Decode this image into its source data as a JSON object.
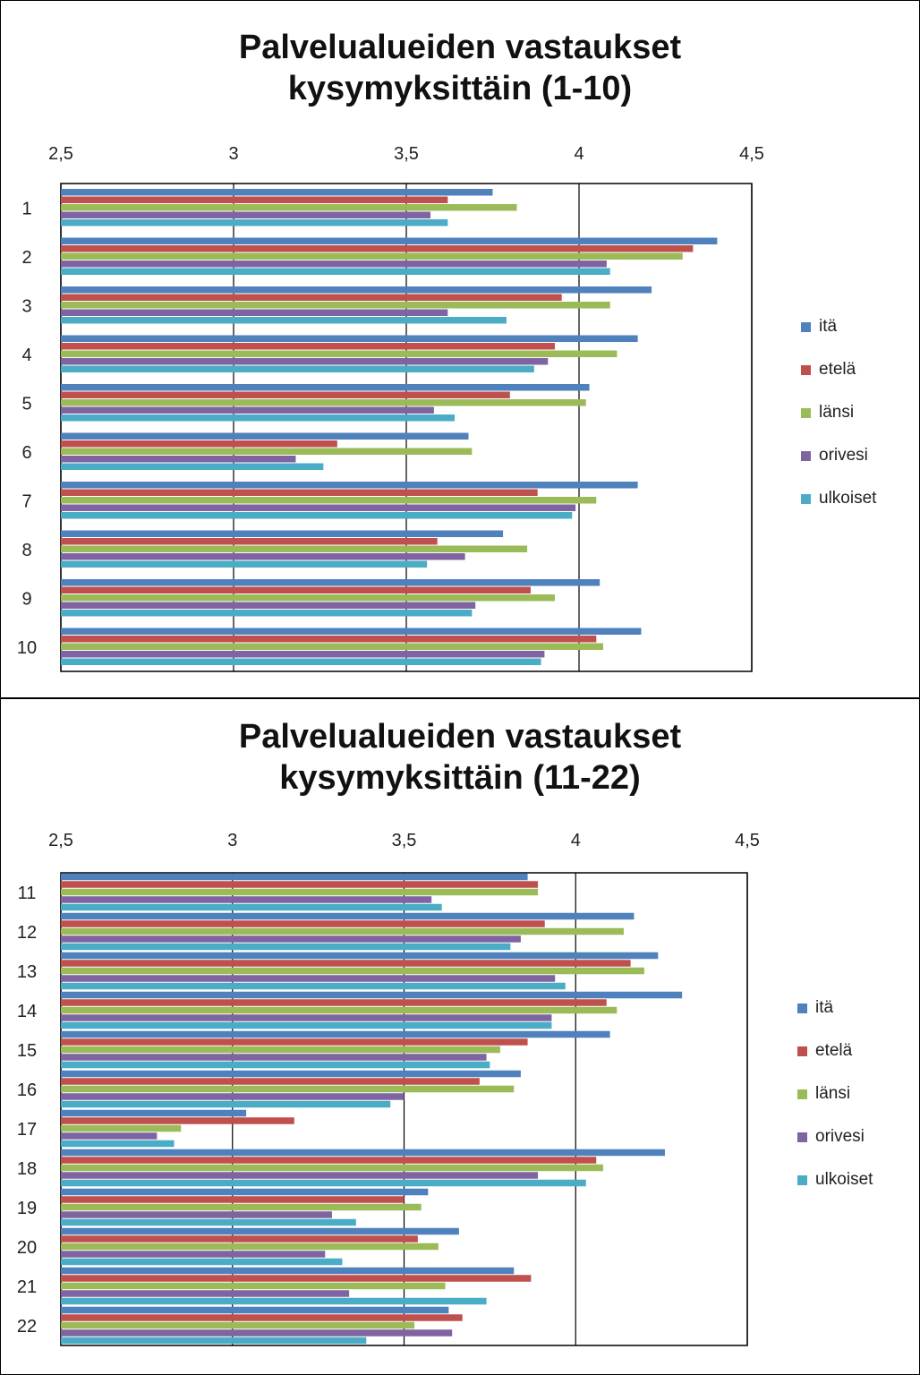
{
  "chart_data": [
    {
      "type": "bar",
      "orientation": "horizontal",
      "title": "Palvelualueiden vastaukset kysymyksittäin (1-10)",
      "title_lines": [
        "Palvelualueiden vastaukset",
        "kysymyksittäin (1-10)"
      ],
      "xlim": [
        2.5,
        4.5
      ],
      "x_ticks": [
        2.5,
        3,
        3.5,
        4,
        4.5
      ],
      "x_tick_labels": [
        "2,5",
        "3",
        "3,5",
        "4",
        "4,5"
      ],
      "x_axis_position": "top",
      "grid": "vertical",
      "legend_position": "right",
      "categories": [
        "1",
        "2",
        "3",
        "4",
        "5",
        "6",
        "7",
        "8",
        "9",
        "10"
      ],
      "series": [
        {
          "name": "itä",
          "color": "#4f81bd",
          "values": [
            3.75,
            4.4,
            4.21,
            4.17,
            4.03,
            3.68,
            4.17,
            3.78,
            4.06,
            4.18
          ]
        },
        {
          "name": "etelä",
          "color": "#c0504d",
          "values": [
            3.62,
            4.33,
            3.95,
            3.93,
            3.8,
            3.3,
            3.88,
            3.59,
            3.86,
            4.05
          ]
        },
        {
          "name": "länsi",
          "color": "#9bbb59",
          "values": [
            3.82,
            4.3,
            4.09,
            4.11,
            4.02,
            3.69,
            4.05,
            3.85,
            3.93,
            4.07
          ]
        },
        {
          "name": "orivesi",
          "color": "#8064a2",
          "values": [
            3.57,
            4.08,
            3.62,
            3.91,
            3.58,
            3.18,
            3.99,
            3.67,
            3.7,
            3.9
          ]
        },
        {
          "name": "ulkoiset",
          "color": "#4bacc6",
          "values": [
            3.62,
            4.09,
            3.79,
            3.87,
            3.64,
            3.26,
            3.98,
            3.56,
            3.69,
            3.89
          ]
        }
      ]
    },
    {
      "type": "bar",
      "orientation": "horizontal",
      "title": "Palvelualueiden vastaukset kysymyksittäin (11-22)",
      "title_lines": [
        "Palvelualueiden vastaukset",
        "kysymyksittäin (11-22)"
      ],
      "xlim": [
        2.5,
        4.5
      ],
      "x_ticks": [
        2.5,
        3,
        3.5,
        4,
        4.5
      ],
      "x_tick_labels": [
        "2,5",
        "3",
        "3,5",
        "4",
        "4,5"
      ],
      "x_axis_position": "top",
      "grid": "vertical",
      "legend_position": "right",
      "categories": [
        "11",
        "12",
        "13",
        "14",
        "15",
        "16",
        "17",
        "18",
        "19",
        "20",
        "21",
        "22"
      ],
      "series": [
        {
          "name": "itä",
          "color": "#4f81bd",
          "values": [
            3.86,
            4.17,
            4.24,
            4.31,
            4.1,
            3.84,
            3.04,
            4.26,
            3.57,
            3.66,
            3.82,
            3.63
          ]
        },
        {
          "name": "etelä",
          "color": "#c0504d",
          "values": [
            3.89,
            3.91,
            4.16,
            4.09,
            3.86,
            3.72,
            3.18,
            4.06,
            3.5,
            3.54,
            3.87,
            3.67
          ]
        },
        {
          "name": "länsi",
          "color": "#9bbb59",
          "values": [
            3.89,
            4.14,
            4.2,
            4.12,
            3.78,
            3.82,
            2.85,
            4.08,
            3.55,
            3.6,
            3.62,
            3.53
          ]
        },
        {
          "name": "orivesi",
          "color": "#8064a2",
          "values": [
            3.58,
            3.84,
            3.94,
            3.93,
            3.74,
            3.5,
            2.78,
            3.89,
            3.29,
            3.27,
            3.34,
            3.64
          ]
        },
        {
          "name": "ulkoiset",
          "color": "#4bacc6",
          "values": [
            3.61,
            3.81,
            3.97,
            3.93,
            3.75,
            3.46,
            2.83,
            4.03,
            3.36,
            3.32,
            3.74,
            3.39
          ]
        }
      ]
    }
  ]
}
